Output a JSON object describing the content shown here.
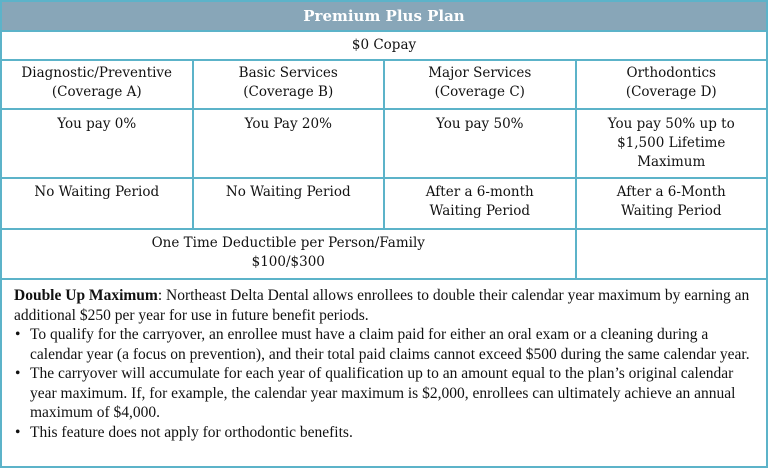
{
  "title": "Premium Plus Plan",
  "copay": "$0 Copay",
  "columns": [
    {
      "name": "Diagnostic/Preventive",
      "coverage": "(Coverage A)",
      "pay": "You pay 0%",
      "waiting": "No Waiting Period"
    },
    {
      "name": "Basic Services",
      "coverage": "(Coverage B)",
      "pay": "You Pay 20%",
      "waiting": "No Waiting Period"
    },
    {
      "name": "Major Services",
      "coverage": "(Coverage C)",
      "pay": "You pay 50%",
      "waiting": "After a 6-month Waiting Period"
    },
    {
      "name": "Orthodontics",
      "coverage": "(Coverage D)",
      "pay": "You pay 50% up to $1,500 Lifetime Maximum",
      "waiting": "After a 6-Month Waiting Period"
    }
  ],
  "deductible": {
    "label": "One Time Deductible per Person/Family",
    "value": "$100/$300"
  },
  "note": {
    "heading": "Double Up Maximum",
    "intro": ": Northeast Delta Dental allows enrollees to double their calendar year maximum by earning an additional $250 per year for use in future benefit periods.",
    "bullets": [
      "To qualify for the carryover, an enrollee must have a claim paid for either an oral exam or a cleaning during a calendar year (a focus on prevention), and their total paid claims cannot exceed $500 during the same calendar year.",
      "The carryover will accumulate for each year of qualification up to an amount equal to the plan’s original calendar year maximum. If, for example, the calendar year maximum is $2,000, enrollees can ultimately achieve an annual maximum of $4,000.",
      "This feature does not apply for orthodontic benefits."
    ]
  },
  "colors": {
    "header_bg": "#88a6b8",
    "border": "#5cb3c9"
  }
}
